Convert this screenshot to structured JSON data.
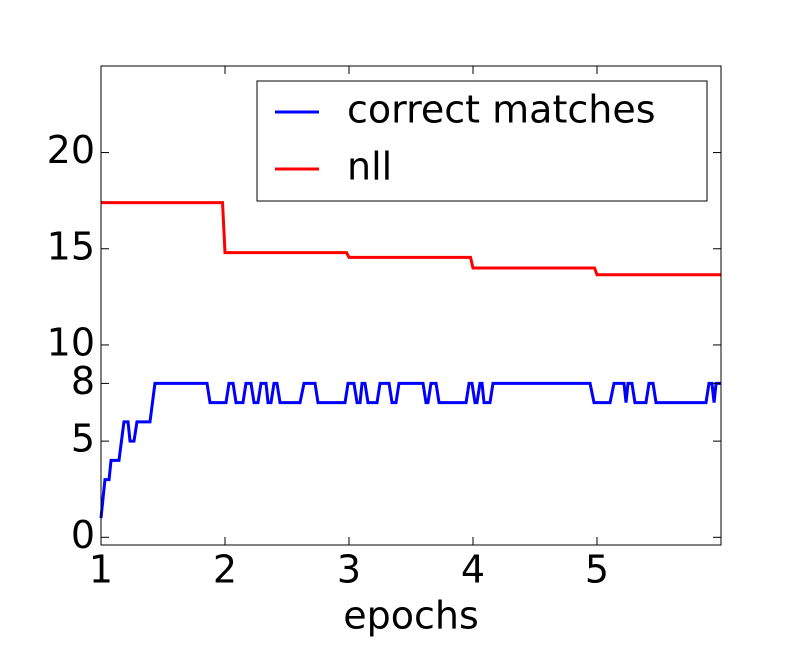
{
  "chart_data": {
    "type": "line",
    "xlabel": "epochs",
    "xlim": [
      1,
      6
    ],
    "ylim": [
      -0.4,
      24.5
    ],
    "xticks": [
      1,
      2,
      3,
      4,
      5
    ],
    "yticks": [
      0,
      5,
      8,
      10,
      15,
      20
    ],
    "legend": "upper right",
    "series": [
      {
        "name": "correct matches",
        "color": "#0000ff",
        "x": [
          1.0,
          1.032,
          1.065,
          1.081,
          1.145,
          1.185,
          1.218,
          1.234,
          1.266,
          1.29,
          1.395,
          1.435,
          1.855,
          1.879,
          2.008,
          2.032,
          2.065,
          2.089,
          2.145,
          2.169,
          2.21,
          2.234,
          2.266,
          2.29,
          2.331,
          2.347,
          2.371,
          2.395,
          2.419,
          2.444,
          2.605,
          2.637,
          2.726,
          2.75,
          2.968,
          2.992,
          3.04,
          3.065,
          3.089,
          3.105,
          3.129,
          3.153,
          3.226,
          3.25,
          3.323,
          3.347,
          3.379,
          3.403,
          3.597,
          3.621,
          3.637,
          3.661,
          3.702,
          3.726,
          3.944,
          3.968,
          3.992,
          4.016,
          4.032,
          4.056,
          4.073,
          4.089,
          4.137,
          4.161,
          4.944,
          4.976,
          5.105,
          5.137,
          5.218,
          5.234,
          5.25,
          5.282,
          5.306,
          5.395,
          5.419,
          5.452,
          5.476,
          5.879,
          5.903,
          5.927,
          5.944,
          5.96,
          6.0
        ],
        "values": [
          1,
          3,
          3,
          4,
          4,
          6,
          6,
          5,
          5,
          6,
          6,
          8,
          8,
          7,
          7,
          8,
          8,
          7,
          7,
          8,
          8,
          7,
          7,
          8,
          8,
          7,
          7,
          8,
          8,
          7,
          7,
          8,
          8,
          7,
          7,
          8,
          8,
          7,
          7,
          8,
          8,
          7,
          7,
          8,
          8,
          7,
          7,
          8,
          8,
          7,
          7,
          8,
          8,
          7,
          7,
          8,
          8,
          7,
          7,
          8,
          8,
          7,
          7,
          8,
          8,
          7,
          7,
          8,
          8,
          7,
          8,
          8,
          7,
          7,
          8,
          8,
          7,
          7,
          8,
          8,
          7,
          8,
          8
        ]
      },
      {
        "name": "nll",
        "color": "#ff0000",
        "x": [
          1.0,
          1.98,
          2.0,
          2.98,
          3.0,
          3.98,
          4.0,
          4.98,
          5.0,
          6.0
        ],
        "values": [
          17.4,
          17.4,
          14.8,
          14.8,
          14.55,
          14.55,
          14.0,
          14.0,
          13.65,
          13.65
        ]
      }
    ]
  }
}
